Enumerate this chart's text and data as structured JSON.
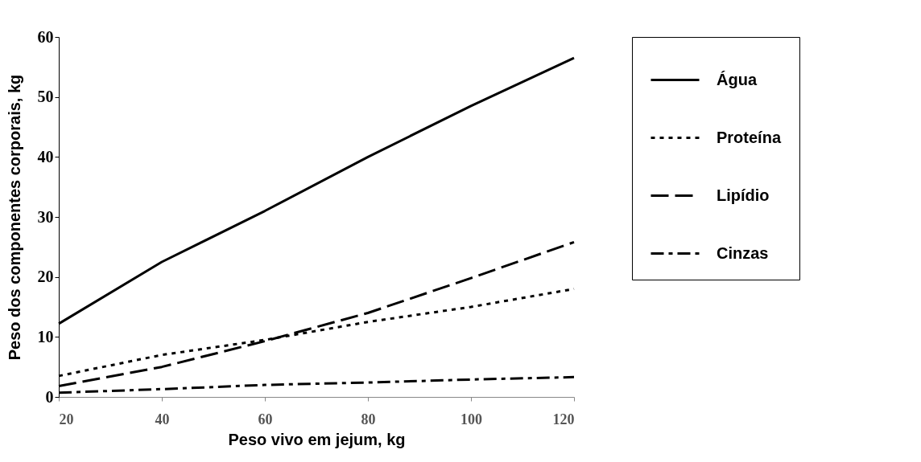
{
  "chart_data": {
    "type": "line",
    "xlabel": "Peso vivo em jejum, kg",
    "ylabel": "Peso dos componentes corporais, kg",
    "x": [
      20,
      40,
      60,
      80,
      100,
      120
    ],
    "series": [
      {
        "name": "Água",
        "color": "#000000",
        "line_style": "solid",
        "values": [
          12.2,
          22.5,
          31,
          40,
          48.5,
          56.5
        ]
      },
      {
        "name": "Proteína",
        "color": "#000000",
        "line_style": "dotted",
        "values": [
          3.5,
          7,
          9.5,
          12.5,
          15,
          18
        ]
      },
      {
        "name": "Lipídio",
        "color": "#000000",
        "line_style": "dashed",
        "values": [
          1.8,
          5,
          9.3,
          14,
          19.8,
          25.8
        ]
      },
      {
        "name": "Cinzas",
        "color": "#000000",
        "line_style": "dashdot",
        "values": [
          0.7,
          1.3,
          2,
          2.4,
          2.9,
          3.3
        ]
      }
    ],
    "xlim": [
      20,
      120
    ],
    "xticks": [
      20,
      40,
      60,
      80,
      100,
      120
    ],
    "ylim": [
      0,
      60
    ],
    "yticks": [
      0,
      10,
      20,
      30,
      40,
      50,
      60
    ],
    "grid": false,
    "legend": "right",
    "marker": "none"
  }
}
